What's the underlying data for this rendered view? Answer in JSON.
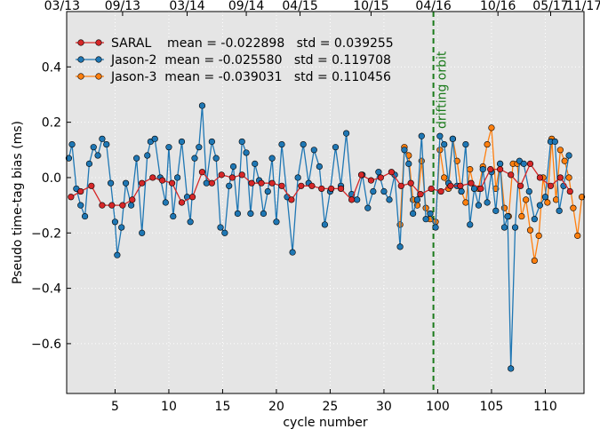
{
  "chart_data": {
    "type": "line",
    "xlabel": "cycle number",
    "ylabel": "Pseudo time-tag bias (ms)",
    "xlim": [
      0.5,
      48.6
    ],
    "ylim": [
      -0.78,
      0.6
    ],
    "xticks": [
      5,
      10,
      15,
      20,
      25,
      30,
      {
        "value": 35,
        "label": "100"
      },
      {
        "value": 40,
        "label": "105"
      },
      {
        "value": 45,
        "label": "110"
      }
    ],
    "x2ticks": [
      {
        "value": 0.5,
        "label": "03/13"
      },
      {
        "value": 5.7,
        "label": "09/13"
      },
      {
        "value": 11.7,
        "label": "03/14"
      },
      {
        "value": 17.2,
        "label": "09/14"
      },
      {
        "value": 22.2,
        "label": "04/15"
      },
      {
        "value": 28.8,
        "label": "10/15"
      },
      {
        "value": 34.6,
        "label": "04/16"
      },
      {
        "value": 40.6,
        "label": "10/16"
      },
      {
        "value": 45.5,
        "label": "05/17"
      },
      {
        "value": 48.6,
        "label": "11/17"
      }
    ],
    "yticks": [
      {
        "value": -0.6,
        "label": "−0.6"
      },
      {
        "value": -0.4,
        "label": "−0.4"
      },
      {
        "value": -0.2,
        "label": "−0.2"
      },
      {
        "value": 0,
        "label": "0.0"
      },
      0.2,
      0.4
    ],
    "grid": true,
    "legend": "upper left",
    "vline": {
      "x": 34.6,
      "label": "drifting orbit",
      "color": "#1a7a1a"
    },
    "series": [
      {
        "name": "SARAL    mean = -0.022898   std = 0.039255",
        "color": "#d62728",
        "x": [
          0.9,
          1.8,
          2.8,
          3.8,
          4.7,
          5.7,
          6.6,
          7.5,
          8.5,
          9.4,
          10.3,
          11.2,
          12.2,
          13.1,
          14.0,
          14.9,
          15.9,
          16.8,
          17.7,
          18.6,
          19.6,
          20.5,
          21.4,
          22.3,
          23.3,
          24.2,
          25.1,
          26.0,
          27.0,
          27.9,
          28.8,
          29.7,
          30.7,
          31.6,
          32.5,
          33.4,
          34.4,
          35.3,
          36.2,
          37.1,
          38.1,
          39.0,
          39.9,
          40.8,
          41.8,
          42.7,
          43.6,
          44.5,
          45.5,
          46.4,
          47.3
        ],
        "values": [
          -0.07,
          -0.05,
          -0.03,
          -0.1,
          -0.1,
          -0.1,
          -0.08,
          -0.02,
          0.0,
          -0.01,
          -0.02,
          -0.09,
          -0.07,
          0.02,
          -0.02,
          0.01,
          0.0,
          0.01,
          -0.02,
          -0.02,
          -0.02,
          -0.03,
          -0.08,
          -0.03,
          -0.03,
          -0.04,
          -0.04,
          -0.04,
          -0.08,
          0.01,
          -0.01,
          0.0,
          0.02,
          -0.03,
          -0.02,
          -0.06,
          -0.04,
          -0.05,
          -0.03,
          -0.03,
          -0.02,
          -0.04,
          0.03,
          0.03,
          0.01,
          -0.03,
          0.05,
          0.0,
          -0.03,
          0.0,
          -0.05
        ]
      },
      {
        "name": "Jason-2  mean = -0.025580   std = 0.119708",
        "color": "#1f77b4",
        "x": [
          0.7,
          1.0,
          1.4,
          1.8,
          2.2,
          2.6,
          3.0,
          3.4,
          3.8,
          4.2,
          4.6,
          5.0,
          5.2,
          5.6,
          6.0,
          6.5,
          7.0,
          7.5,
          8.0,
          8.3,
          8.7,
          9.2,
          9.7,
          10.0,
          10.4,
          10.8,
          11.2,
          11.7,
          12.0,
          12.4,
          12.8,
          13.1,
          13.5,
          14.0,
          14.4,
          14.8,
          15.2,
          15.6,
          16.0,
          16.4,
          16.8,
          17.2,
          17.6,
          18.0,
          18.4,
          18.8,
          19.2,
          19.6,
          20.0,
          20.5,
          21.0,
          21.5,
          22.0,
          22.5,
          23.0,
          23.5,
          24.0,
          24.5,
          25.0,
          25.5,
          26.0,
          26.5,
          27.0,
          27.5,
          28.0,
          28.5,
          29.0,
          29.5,
          30.0,
          30.5,
          31.0,
          31.5,
          31.9,
          32.3,
          32.7,
          33.1,
          33.5,
          33.9,
          34.3,
          34.8,
          35.2,
          35.6,
          36.0,
          36.4,
          36.8,
          37.2,
          37.6,
          38.0,
          38.4,
          38.8,
          39.2,
          39.6,
          40.0,
          40.4,
          40.8,
          41.2,
          41.5,
          41.8,
          42.2,
          42.6,
          43.0,
          43.5,
          44.0,
          44.5,
          45.0,
          45.5,
          45.9,
          46.3,
          46.7,
          47.2
        ],
        "values": [
          0.07,
          0.12,
          -0.04,
          -0.1,
          -0.14,
          0.05,
          0.11,
          0.08,
          0.14,
          0.12,
          -0.02,
          -0.16,
          -0.28,
          -0.18,
          -0.02,
          -0.1,
          0.07,
          -0.2,
          0.08,
          0.13,
          0.14,
          0.0,
          -0.09,
          0.11,
          -0.14,
          0.0,
          0.13,
          -0.07,
          -0.16,
          0.07,
          0.11,
          0.26,
          -0.02,
          0.13,
          0.07,
          -0.18,
          -0.2,
          -0.03,
          0.04,
          -0.13,
          0.13,
          0.09,
          -0.13,
          0.05,
          -0.01,
          -0.13,
          -0.05,
          0.07,
          -0.16,
          0.12,
          -0.07,
          -0.27,
          0.0,
          0.12,
          -0.02,
          0.1,
          0.04,
          -0.17,
          -0.05,
          0.11,
          -0.03,
          0.16,
          -0.06,
          -0.08,
          0.01,
          -0.11,
          -0.05,
          0.02,
          -0.05,
          -0.08,
          0.01,
          -0.25,
          0.1,
          0.05,
          -0.13,
          -0.08,
          0.15,
          -0.15,
          -0.13,
          -0.18,
          0.15,
          0.12,
          -0.02,
          0.14,
          -0.03,
          -0.05,
          0.12,
          -0.17,
          -0.04,
          -0.1,
          0.03,
          -0.09,
          0.02,
          -0.12,
          0.05,
          -0.18,
          -0.14,
          -0.69,
          -0.18,
          0.06,
          0.05,
          -0.05,
          -0.15,
          -0.1,
          -0.07,
          0.13,
          0.13,
          -0.12,
          -0.03,
          0.08
        ]
      },
      {
        "name": "Jason-3  mean = -0.039031   std = 0.110456",
        "color": "#ff7f0e",
        "x": [
          31.5,
          31.9,
          32.3,
          32.7,
          33.1,
          33.5,
          33.9,
          34.3,
          34.8,
          35.2,
          35.6,
          36.0,
          36.4,
          36.8,
          37.2,
          37.6,
          38.0,
          38.4,
          38.8,
          39.2,
          39.6,
          40.0,
          40.4,
          40.8,
          41.2,
          41.6,
          42.0,
          42.4,
          42.8,
          43.2,
          43.6,
          44.0,
          44.4,
          44.8,
          45.2,
          45.6,
          46.0,
          46.4,
          46.8,
          47.2,
          47.6,
          48.0,
          48.4
        ],
        "values": [
          -0.17,
          0.11,
          0.08,
          -0.08,
          -0.1,
          0.06,
          -0.11,
          -0.15,
          -0.16,
          0.1,
          0.0,
          -0.04,
          0.14,
          0.06,
          -0.05,
          -0.09,
          0.03,
          -0.04,
          -0.04,
          0.04,
          0.12,
          0.18,
          -0.04,
          0.05,
          -0.11,
          -0.14,
          0.05,
          0.05,
          -0.14,
          -0.08,
          -0.19,
          -0.3,
          -0.21,
          0.0,
          -0.09,
          0.14,
          -0.08,
          0.1,
          0.06,
          0.0,
          -0.11,
          -0.21,
          -0.07
        ]
      }
    ]
  }
}
